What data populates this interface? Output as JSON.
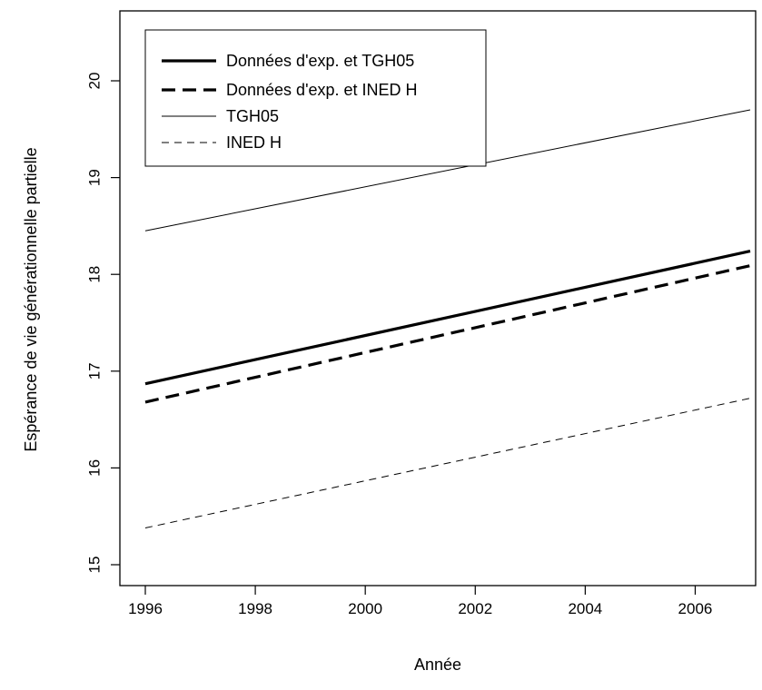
{
  "chart_data": {
    "type": "line",
    "title": "",
    "xlabel": "Année",
    "ylabel": "Espérance de vie générationnelle partielle",
    "xlim": [
      1996,
      2007
    ],
    "ylim": [
      15,
      20.5
    ],
    "x_ticks": [
      1996,
      1998,
      2000,
      2002,
      2004,
      2006
    ],
    "y_ticks": [
      15,
      16,
      17,
      18,
      19,
      20
    ],
    "grid": false,
    "legend_position": "top-left",
    "series": [
      {
        "name": "Données d'exp. et TGH05",
        "x": [
          1996,
          2007
        ],
        "values": [
          16.87,
          18.24
        ],
        "style": "thick-solid"
      },
      {
        "name": "Données d'exp. et INED H",
        "x": [
          1996,
          2007
        ],
        "values": [
          16.68,
          18.09
        ],
        "style": "thick-dashed"
      },
      {
        "name": "TGH05",
        "x": [
          1996,
          2007
        ],
        "values": [
          18.45,
          19.7
        ],
        "style": "thin-solid"
      },
      {
        "name": "INED H",
        "x": [
          1996,
          2007
        ],
        "values": [
          15.38,
          16.72
        ],
        "style": "thin-dashed"
      }
    ]
  }
}
